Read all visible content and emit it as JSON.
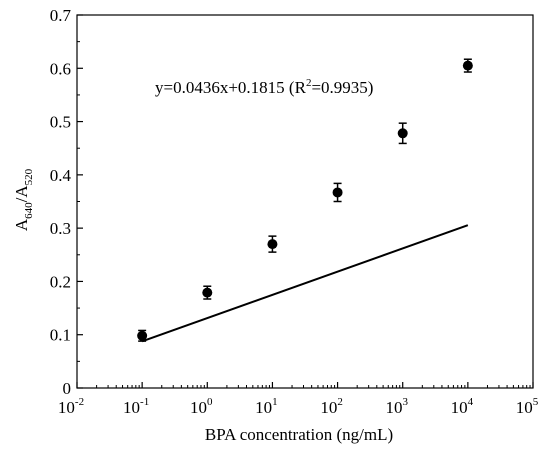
{
  "chart_data": {
    "type": "scatter",
    "x_scale": "log",
    "xlabel": "BPA concentration (ng/mL)",
    "ylabel": {
      "main_1": "A",
      "sub_1": "640",
      "sep": "/",
      "main_2": "A",
      "sub_2": "520"
    },
    "annotation": {
      "prefix": "y=0.0436x+0.1815 (R",
      "superscript": "2",
      "suffix": "=0.9935)"
    },
    "xlim": [
      0.01,
      100000
    ],
    "ylim": [
      0,
      0.7
    ],
    "x_ticks": [
      {
        "value": 0.01,
        "base": "10",
        "exp": "-2"
      },
      {
        "value": 0.1,
        "base": "10",
        "exp": "-1"
      },
      {
        "value": 1,
        "base": "10",
        "exp": "0"
      },
      {
        "value": 10,
        "base": "10",
        "exp": "1"
      },
      {
        "value": 100,
        "base": "10",
        "exp": "2"
      },
      {
        "value": 1000,
        "base": "10",
        "exp": "3"
      },
      {
        "value": 10000,
        "base": "10",
        "exp": "4"
      },
      {
        "value": 100000,
        "base": "10",
        "exp": "5"
      }
    ],
    "y_ticks": [
      {
        "value": 0,
        "label": "0"
      },
      {
        "value": 0.1,
        "label": "0.1"
      },
      {
        "value": 0.2,
        "label": "0.2"
      },
      {
        "value": 0.3,
        "label": "0.3"
      },
      {
        "value": 0.4,
        "label": "0.4"
      },
      {
        "value": 0.5,
        "label": "0.5"
      },
      {
        "value": 0.6,
        "label": "0.6"
      },
      {
        "value": 0.7,
        "label": "0.7"
      }
    ],
    "series": [
      {
        "x": [
          0.1,
          1,
          10,
          100,
          1000,
          10000
        ],
        "y": [
          0.098,
          0.179,
          0.27,
          0.367,
          0.478,
          0.605
        ],
        "error": [
          0.01,
          0.012,
          0.015,
          0.017,
          0.019,
          0.012
        ]
      }
    ],
    "fit": {
      "slope": 0.0436,
      "intercept": 0.1815,
      "x_range": [
        0.1,
        10000
      ]
    },
    "grid": false,
    "legend": "none"
  }
}
